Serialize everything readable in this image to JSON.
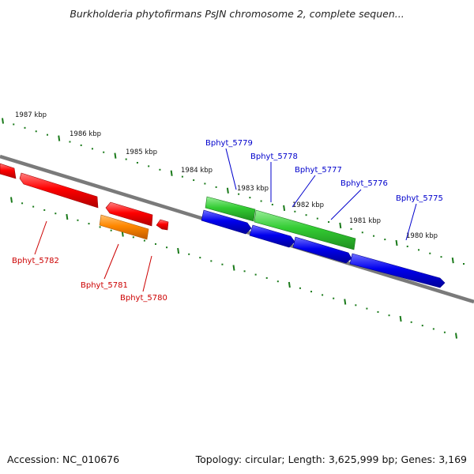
{
  "header": {
    "title": "Burkholderia phytofirmans PsJN chromosome 2, complete sequen..."
  },
  "footer": {
    "accession": "Accession: NC_010676",
    "summary": "Topology: circular; Length: 3,625,999 bp; Genes: 3,169"
  },
  "colors": {
    "backbone": "#808080",
    "ticks": "#1a7a1a",
    "label_red": "#cc0000",
    "label_blue": "#0000cc",
    "gene_red": "#ff0000",
    "gene_orange": "#ff8800",
    "gene_green": "#33cc33",
    "gene_blue": "#0000ee"
  },
  "kbp_labels": [
    "1987 kbp",
    "1986 kbp",
    "1985 kbp",
    "1984 kbp",
    "1983 kbp",
    "1982 kbp",
    "1981 kbp",
    "1980 kbp"
  ],
  "gene_labels": [
    {
      "id": "Bphyt_5779",
      "color": "blue"
    },
    {
      "id": "Bphyt_5778",
      "color": "blue"
    },
    {
      "id": "Bphyt_5777",
      "color": "blue"
    },
    {
      "id": "Bphyt_5776",
      "color": "blue"
    },
    {
      "id": "Bphyt_5775",
      "color": "blue"
    },
    {
      "id": "Bphyt_5782",
      "color": "red"
    },
    {
      "id": "Bphyt_5781",
      "color": "red"
    },
    {
      "id": "Bphyt_5780",
      "color": "red"
    }
  ],
  "genes": [
    {
      "name": "gene-red-1",
      "color": "red"
    },
    {
      "name": "gene-red-5782",
      "color": "red"
    },
    {
      "name": "gene-red-3",
      "color": "red"
    },
    {
      "name": "gene-red-4",
      "color": "red"
    },
    {
      "name": "gene-orange-5781",
      "color": "orange"
    },
    {
      "name": "gene-green-5779",
      "color": "green"
    },
    {
      "name": "gene-green-5777",
      "color": "green"
    },
    {
      "name": "gene-blue-1",
      "color": "blue"
    },
    {
      "name": "gene-blue-2",
      "color": "blue"
    },
    {
      "name": "gene-blue-3",
      "color": "blue"
    },
    {
      "name": "gene-blue-4",
      "color": "blue"
    }
  ]
}
